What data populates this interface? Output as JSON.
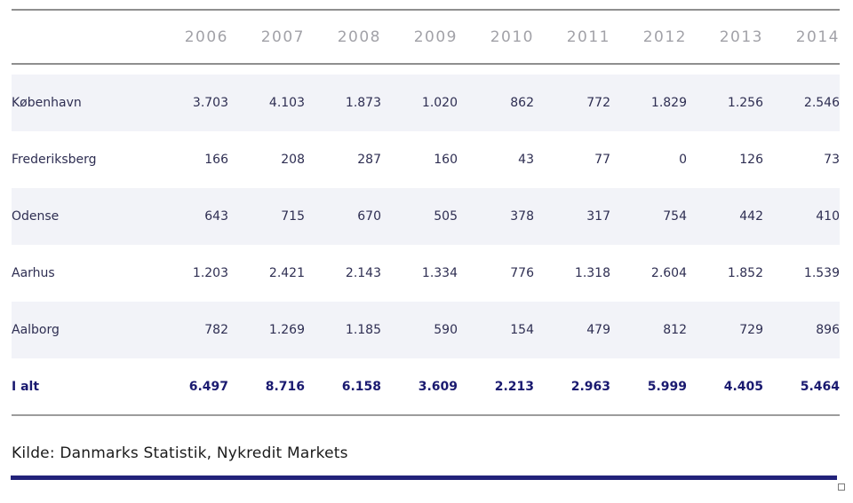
{
  "colors": {
    "accent_navy": "#22227a",
    "total_text": "#1a1a70",
    "data_text": "#2e2e52",
    "header_text": "#a2a2a8",
    "stripe_bg": "#f2f3f8",
    "rule_gray": "#8f8f8f"
  },
  "table": {
    "year_headers": [
      "2006",
      "2007",
      "2008",
      "2009",
      "2010",
      "2011",
      "2012",
      "2013",
      "2014"
    ],
    "rows": [
      {
        "label": "København",
        "values": [
          "3.703",
          "4.103",
          "1.873",
          "1.020",
          "862",
          "772",
          "1.829",
          "1.256",
          "2.546"
        ]
      },
      {
        "label": "Frederiksberg",
        "values": [
          "166",
          "208",
          "287",
          "160",
          "43",
          "77",
          "0",
          "126",
          "73"
        ]
      },
      {
        "label": "Odense",
        "values": [
          "643",
          "715",
          "670",
          "505",
          "378",
          "317",
          "754",
          "442",
          "410"
        ]
      },
      {
        "label": "Aarhus",
        "values": [
          "1.203",
          "2.421",
          "2.143",
          "1.334",
          "776",
          "1.318",
          "2.604",
          "1.852",
          "1.539"
        ]
      },
      {
        "label": "Aalborg",
        "values": [
          "782",
          "1.269",
          "1.185",
          "590",
          "154",
          "479",
          "812",
          "729",
          "896"
        ]
      }
    ],
    "total_row": {
      "label": "I alt",
      "values": [
        "6.497",
        "8.716",
        "6.158",
        "3.609",
        "2.213",
        "2.963",
        "5.999",
        "4.405",
        "5.464"
      ]
    }
  },
  "footer": {
    "source_text": "Kilde: Danmarks Statistik, Nykredit Markets"
  },
  "chart_data": {
    "type": "table",
    "categories": [
      "2006",
      "2007",
      "2008",
      "2009",
      "2010",
      "2011",
      "2012",
      "2013",
      "2014"
    ],
    "series": [
      {
        "name": "København",
        "values": [
          3703,
          4103,
          1873,
          1020,
          862,
          772,
          1829,
          1256,
          2546
        ]
      },
      {
        "name": "Frederiksberg",
        "values": [
          166,
          208,
          287,
          160,
          43,
          77,
          0,
          126,
          73
        ]
      },
      {
        "name": "Odense",
        "values": [
          643,
          715,
          670,
          505,
          378,
          317,
          754,
          442,
          410
        ]
      },
      {
        "name": "Aarhus",
        "values": [
          1203,
          2421,
          2143,
          1334,
          776,
          1318,
          2604,
          1852,
          1539
        ]
      },
      {
        "name": "Aalborg",
        "values": [
          782,
          1269,
          1185,
          590,
          154,
          479,
          812,
          729,
          896
        ]
      },
      {
        "name": "I alt",
        "values": [
          6497,
          8716,
          6158,
          3609,
          2213,
          2963,
          5999,
          4405,
          5464
        ]
      }
    ],
    "title": "",
    "xlabel": "",
    "ylabel": "",
    "source": "Kilde: Danmarks Statistik, Nykredit Markets",
    "number_format": "Danish thousands separator (.)"
  }
}
